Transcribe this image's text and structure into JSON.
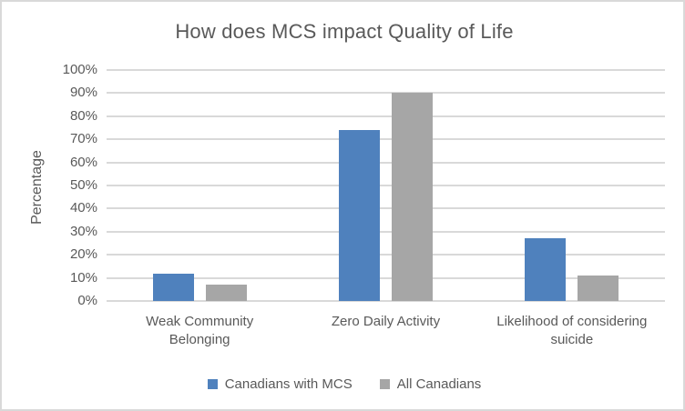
{
  "frame": {
    "background": "#ffffff",
    "border_color": "#d9d9d9"
  },
  "chart_data": {
    "type": "bar",
    "title": "How does MCS impact Quality of Life",
    "xlabel": "",
    "ylabel": "Percentage",
    "categories": [
      "Weak Community Belonging",
      "Zero Daily Activity",
      "Likelihood of considering suicide"
    ],
    "series": [
      {
        "name": "Canadians with MCS",
        "color": "#4f81bd",
        "values": [
          12,
          74,
          27
        ]
      },
      {
        "name": "All Canadians",
        "color": "#a6a6a6",
        "values": [
          7,
          90,
          11
        ]
      }
    ],
    "ylim": [
      0,
      100
    ],
    "y_tick_values": [
      0,
      10,
      20,
      30,
      40,
      50,
      60,
      70,
      80,
      90,
      100
    ],
    "y_tick_labels": [
      "0%",
      "10%",
      "20%",
      "30%",
      "40%",
      "50%",
      "60%",
      "70%",
      "80%",
      "90%",
      "100%"
    ],
    "grid": "horizontal",
    "gridline_color": "#d9d9d9",
    "text_color": "#595959",
    "legend_position": "bottom"
  }
}
